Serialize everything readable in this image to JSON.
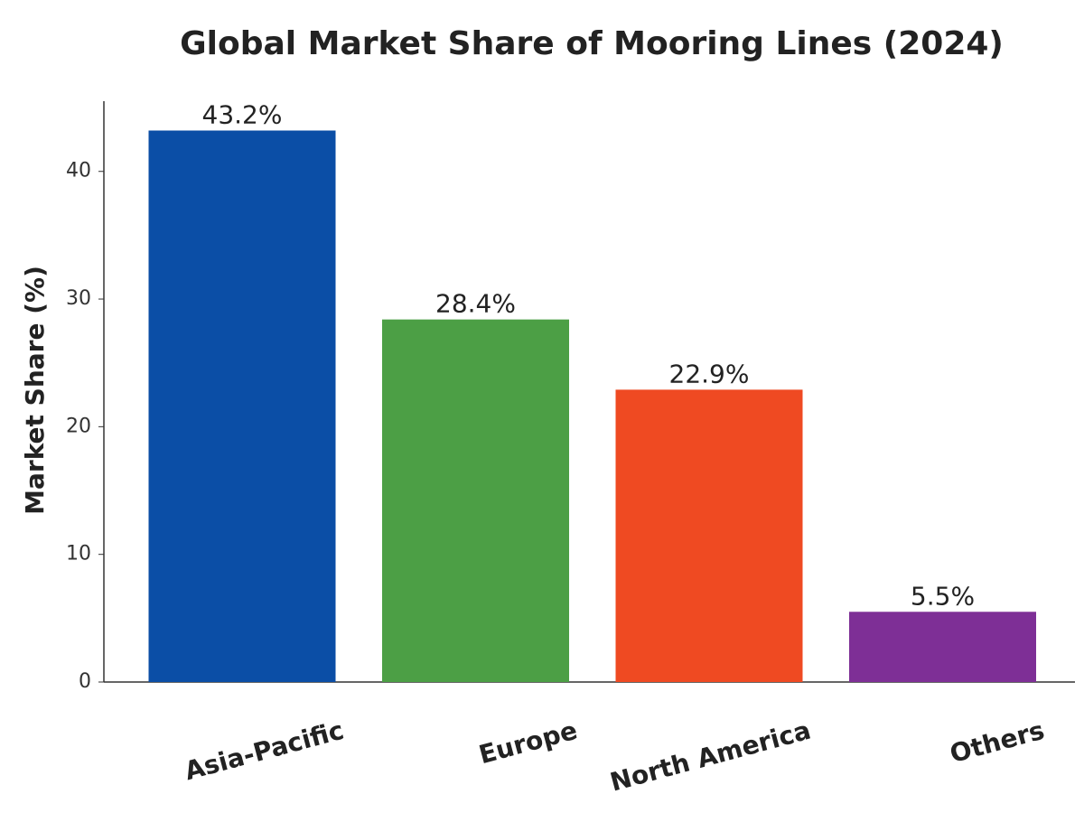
{
  "chart_data": {
    "type": "bar",
    "title": "Global Market Share of Mooring Lines (2024)",
    "y_label": "Market Share (%)",
    "categories": [
      "Asia-Pacific",
      "Europe",
      "North America",
      "Others"
    ],
    "values": [
      43.2,
      28.4,
      22.9,
      5.5
    ],
    "value_labels": [
      "43.2%",
      "28.4%",
      "22.9%",
      "5.5%"
    ],
    "colors": [
      "#0b4ea6",
      "#4c9f45",
      "#ef4a22",
      "#7e2f96"
    ],
    "ylim": [
      0,
      45.5
    ],
    "yticks": [
      0,
      10,
      20,
      30,
      40
    ],
    "grid": false
  }
}
